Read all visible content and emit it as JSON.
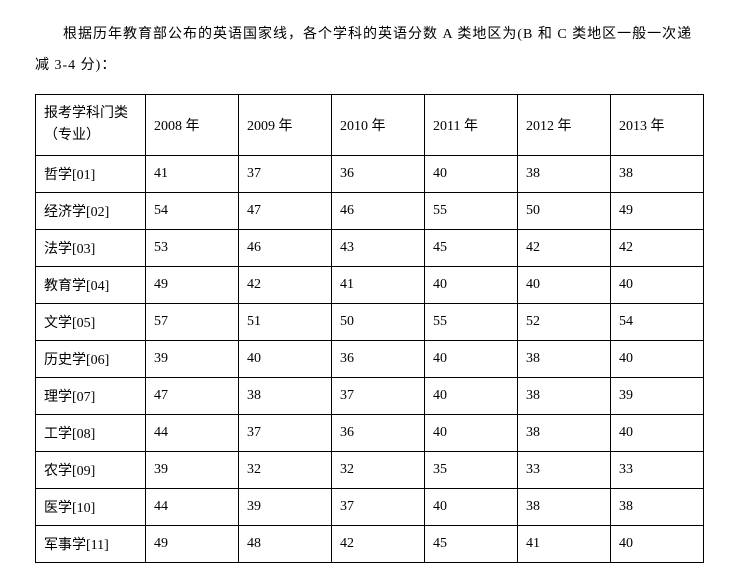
{
  "intro": {
    "text": "根据历年教育部公布的英语国家线，各个学科的英语分数 A 类地区为(B 和 C 类地区一般一次递减 3-4 分)："
  },
  "table": {
    "header": {
      "col0": "报考学科门类（专业）",
      "years": [
        "2008 年",
        "2009 年",
        "2010 年",
        "2011 年",
        "2012 年",
        "2013 年"
      ]
    },
    "rows": [
      {
        "label": "哲学[01]",
        "values": [
          "41",
          "37",
          "36",
          "40",
          "38",
          "38"
        ]
      },
      {
        "label": "经济学[02]",
        "values": [
          "54",
          "47",
          "46",
          "55",
          "50",
          "49"
        ]
      },
      {
        "label": "法学[03]",
        "values": [
          "53",
          "46",
          "43",
          "45",
          "42",
          "42"
        ]
      },
      {
        "label": "教育学[04]",
        "values": [
          "49",
          "42",
          "41",
          "40",
          "40",
          "40"
        ]
      },
      {
        "label": "文学[05]",
        "values": [
          "57",
          "51",
          "50",
          "55",
          "52",
          "54"
        ]
      },
      {
        "label": "历史学[06]",
        "values": [
          "39",
          "40",
          "36",
          "40",
          "38",
          "40"
        ]
      },
      {
        "label": "理学[07]",
        "values": [
          "47",
          "38",
          "37",
          "40",
          "38",
          "39"
        ]
      },
      {
        "label": "工学[08]",
        "values": [
          "44",
          "37",
          "36",
          "40",
          "38",
          "40"
        ]
      },
      {
        "label": "农学[09]",
        "values": [
          "39",
          "32",
          "32",
          "35",
          "33",
          "33"
        ]
      },
      {
        "label": "医学[10]",
        "values": [
          "44",
          "39",
          "37",
          "40",
          "38",
          "38"
        ]
      },
      {
        "label": "军事学[11]",
        "values": [
          "49",
          "48",
          "42",
          "45",
          "41",
          "40"
        ]
      }
    ]
  }
}
